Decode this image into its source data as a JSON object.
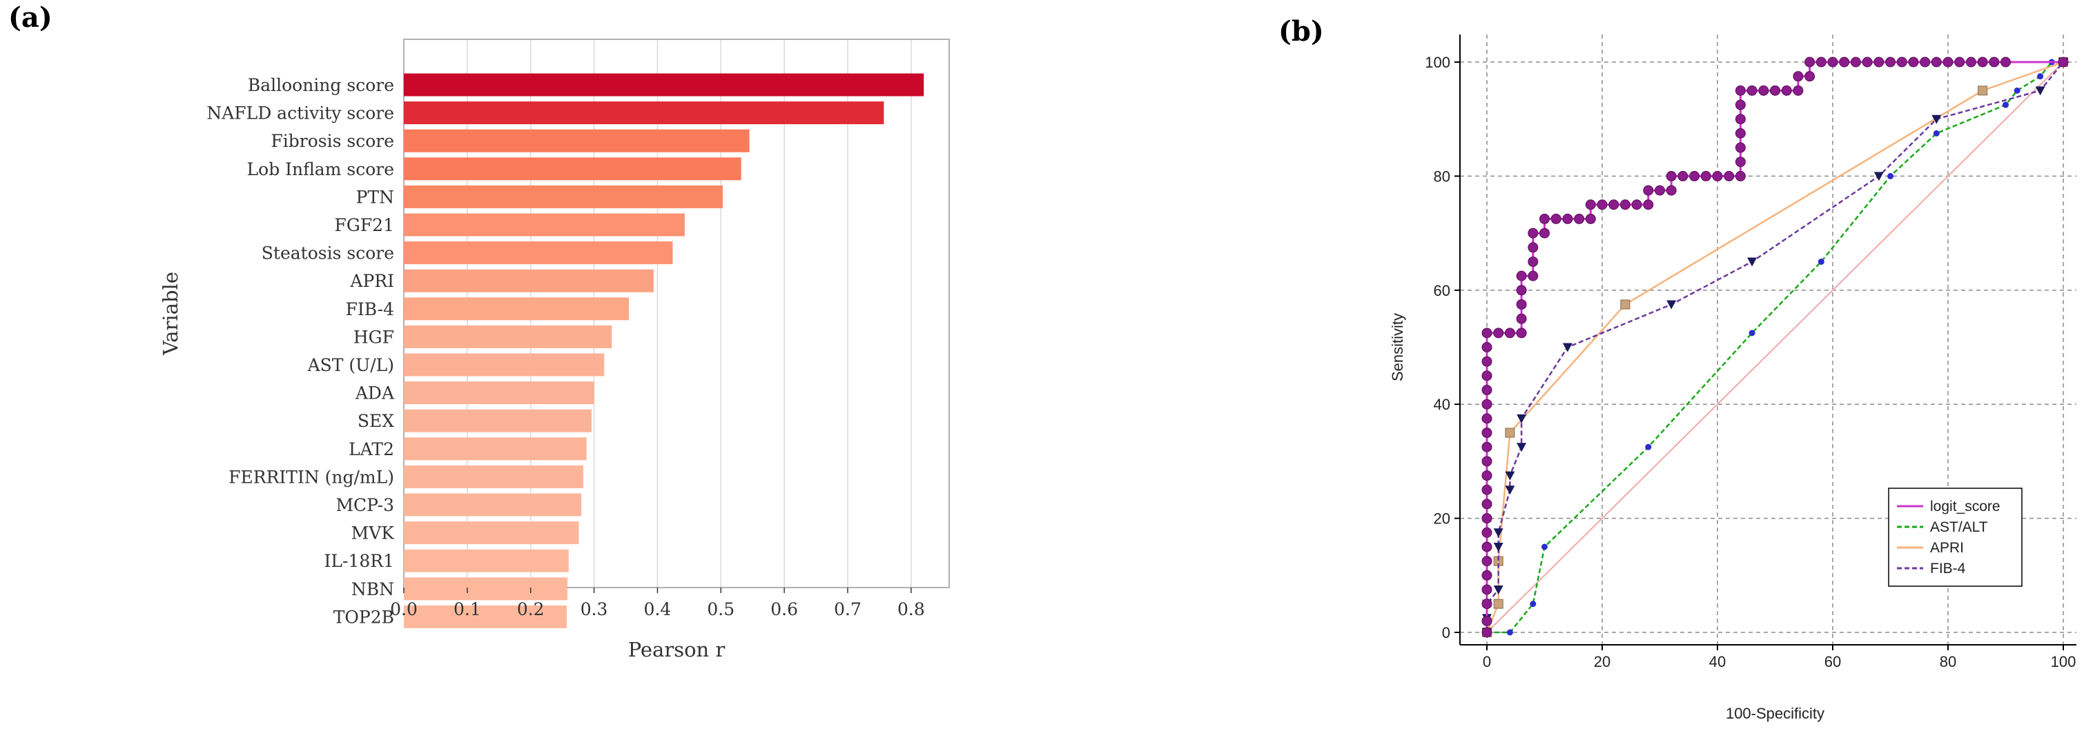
{
  "panels": {
    "a_label": "(a)",
    "b_label": "(b)"
  },
  "chart_data": [
    {
      "type": "bar",
      "orientation": "horizontal",
      "title": "",
      "xlabel": "Pearson r",
      "ylabel": "Variable",
      "xlim": [
        0,
        0.86
      ],
      "xticks": [
        "0.0",
        "0.1",
        "0.2",
        "0.3",
        "0.4",
        "0.5",
        "0.6",
        "0.7",
        "0.8"
      ],
      "grid": "vertical",
      "categories": [
        "Ballooning score",
        "NAFLD activity score",
        "Fibrosis score",
        "Lob Inflam score",
        "PTN",
        "FGF21",
        "Steatosis score",
        "APRI",
        "FIB-4",
        "HGF",
        "AST (U/L)",
        "ADA",
        "SEX",
        "LAT2",
        "FERRITIN (ng/mL)",
        "MCP-3",
        "MVK",
        "IL-18R1",
        "NBN",
        "TOP2B"
      ],
      "values": [
        0.82,
        0.757,
        0.545,
        0.532,
        0.503,
        0.443,
        0.424,
        0.394,
        0.355,
        0.328,
        0.316,
        0.3,
        0.296,
        0.288,
        0.283,
        0.28,
        0.276,
        0.26,
        0.258,
        0.257
      ],
      "colors": [
        "#c9082a",
        "#e02a36",
        "#f97b5a",
        "#f97b5a",
        "#f98762",
        "#fc9272",
        "#fc9272",
        "#fca283",
        "#fca886",
        "#fcae90",
        "#fcb094",
        "#fcb296",
        "#fcb296",
        "#fcb498",
        "#fcb599",
        "#fcb599",
        "#fdb69a",
        "#fdb89c",
        "#fdb89c",
        "#fdb89c"
      ]
    },
    {
      "type": "line",
      "title": "",
      "xlabel": "100-Specificity",
      "ylabel": "Sensitivity",
      "xlim": [
        0,
        100
      ],
      "ylim": [
        0,
        100
      ],
      "xticks": [
        "0",
        "20",
        "40",
        "60",
        "80",
        "100"
      ],
      "yticks": [
        "0",
        "20",
        "40",
        "60",
        "80",
        "100"
      ],
      "grid": true,
      "legend_position": "bottom-right",
      "series": [
        {
          "name": "logit_score",
          "color": "#cc33cc",
          "marker_color": "#8b1c8b",
          "marker": "circle",
          "dash": "solid",
          "points": [
            [
              0,
              0
            ],
            [
              0,
              2
            ],
            [
              0,
              5
            ],
            [
              0,
              7.5
            ],
            [
              0,
              10
            ],
            [
              0,
              12.5
            ],
            [
              0,
              15
            ],
            [
              0,
              17.5
            ],
            [
              0,
              20
            ],
            [
              0,
              22.5
            ],
            [
              0,
              25
            ],
            [
              0,
              27.5
            ],
            [
              0,
              30
            ],
            [
              0,
              32.5
            ],
            [
              0,
              35
            ],
            [
              0,
              37.5
            ],
            [
              0,
              40
            ],
            [
              0,
              42.5
            ],
            [
              0,
              45
            ],
            [
              0,
              47.5
            ],
            [
              0,
              50
            ],
            [
              0,
              52.5
            ],
            [
              2,
              52.5
            ],
            [
              4,
              52.5
            ],
            [
              6,
              52.5
            ],
            [
              6,
              55
            ],
            [
              6,
              57.5
            ],
            [
              6,
              60
            ],
            [
              6,
              62.5
            ],
            [
              8,
              62.5
            ],
            [
              8,
              65
            ],
            [
              8,
              67.5
            ],
            [
              8,
              70
            ],
            [
              10,
              70
            ],
            [
              10,
              72.5
            ],
            [
              12,
              72.5
            ],
            [
              14,
              72.5
            ],
            [
              16,
              72.5
            ],
            [
              18,
              72.5
            ],
            [
              18,
              75
            ],
            [
              20,
              75
            ],
            [
              22,
              75
            ],
            [
              24,
              75
            ],
            [
              26,
              75
            ],
            [
              28,
              75
            ],
            [
              28,
              77.5
            ],
            [
              30,
              77.5
            ],
            [
              32,
              77.5
            ],
            [
              32,
              80
            ],
            [
              34,
              80
            ],
            [
              36,
              80
            ],
            [
              38,
              80
            ],
            [
              40,
              80
            ],
            [
              42,
              80
            ],
            [
              44,
              80
            ],
            [
              44,
              82.5
            ],
            [
              44,
              85
            ],
            [
              44,
              87.5
            ],
            [
              44,
              90
            ],
            [
              44,
              92.5
            ],
            [
              44,
              95
            ],
            [
              46,
              95
            ],
            [
              48,
              95
            ],
            [
              50,
              95
            ],
            [
              52,
              95
            ],
            [
              54,
              95
            ],
            [
              54,
              97.5
            ],
            [
              56,
              97.5
            ],
            [
              56,
              100
            ],
            [
              58,
              100
            ],
            [
              60,
              100
            ],
            [
              62,
              100
            ],
            [
              64,
              100
            ],
            [
              66,
              100
            ],
            [
              68,
              100
            ],
            [
              70,
              100
            ],
            [
              72,
              100
            ],
            [
              74,
              100
            ],
            [
              76,
              100
            ],
            [
              78,
              100
            ],
            [
              80,
              100
            ],
            [
              82,
              100
            ],
            [
              84,
              100
            ],
            [
              86,
              100
            ],
            [
              88,
              100
            ],
            [
              90,
              100
            ],
            [
              100,
              100
            ]
          ]
        },
        {
          "name": "AST/ALT",
          "color": "#1aa81a",
          "marker_color": "#2b2bd4",
          "marker": "dot",
          "dash": "dashed",
          "points": [
            [
              0,
              0
            ],
            [
              4,
              0
            ],
            [
              8,
              5
            ],
            [
              10,
              15
            ],
            [
              28,
              32.5
            ],
            [
              46,
              52.5
            ],
            [
              58,
              65
            ],
            [
              70,
              80
            ],
            [
              78,
              87.5
            ],
            [
              90,
              92.5
            ],
            [
              92,
              95
            ],
            [
              96,
              97.5
            ],
            [
              98,
              100
            ],
            [
              100,
              100
            ]
          ]
        },
        {
          "name": "APRI",
          "color": "#f7b27a",
          "marker_color": "#c9a27a",
          "marker": "square",
          "dash": "solid",
          "points": [
            [
              0,
              0
            ],
            [
              2,
              5
            ],
            [
              2,
              12.5
            ],
            [
              4,
              35
            ],
            [
              24,
              57.5
            ],
            [
              86,
              95
            ],
            [
              100,
              100
            ]
          ]
        },
        {
          "name": "FIB-4",
          "color": "#6a3a9c",
          "marker_color": "#1a1a5c",
          "marker": "triangle-down",
          "dash": "dashed",
          "points": [
            [
              0,
              0
            ],
            [
              0,
              2.5
            ],
            [
              0,
              5
            ],
            [
              2,
              7.5
            ],
            [
              2,
              15
            ],
            [
              2,
              17.5
            ],
            [
              4,
              25
            ],
            [
              4,
              27.5
            ],
            [
              6,
              32.5
            ],
            [
              6,
              37.5
            ],
            [
              14,
              50
            ],
            [
              32,
              57.5
            ],
            [
              46,
              65
            ],
            [
              68,
              80
            ],
            [
              78,
              90
            ],
            [
              96,
              95
            ],
            [
              100,
              100
            ]
          ]
        }
      ]
    }
  ]
}
